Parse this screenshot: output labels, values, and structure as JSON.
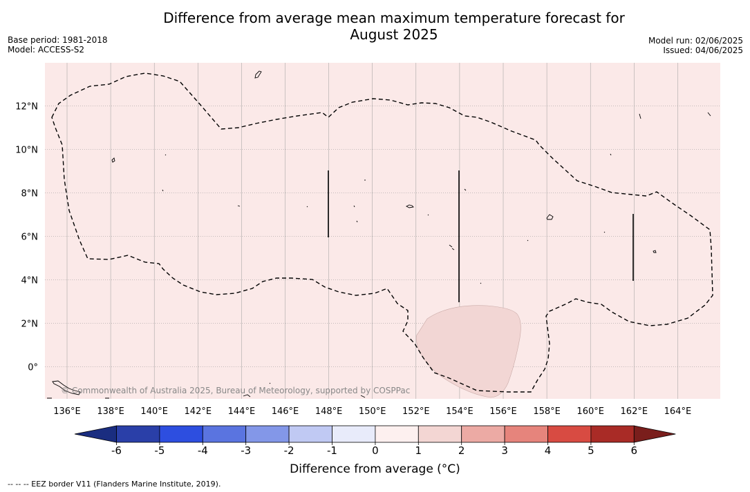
{
  "header": {
    "title_line1": "Difference from average mean maximum temperature forecast for",
    "title_line2": "August 2025",
    "base_period": "Base period: 1981-2018",
    "model": "Model: ACCESS-S2",
    "model_run": "Model run: 02/06/2025",
    "issued": "Issued: 04/06/2025"
  },
  "map": {
    "lon_labels": [
      "136°E",
      "138°E",
      "140°E",
      "142°E",
      "144°E",
      "146°E",
      "148°E",
      "150°E",
      "152°E",
      "154°E",
      "156°E",
      "158°E",
      "160°E",
      "162°E",
      "164°E"
    ],
    "lat_labels": [
      "12°N",
      "10°N",
      "8°N",
      "6°N",
      "4°N",
      "2°N",
      "0°"
    ],
    "background_color": "#fbe9e8",
    "anomaly_patch_color": "#f2d6d4",
    "eez_color": "#000000",
    "copyright": "© Commonwealth of Australia 2025, Bureau of Meteorology, supported by COSPPac"
  },
  "colorbar": {
    "ticks": [
      "-6",
      "-5",
      "-4",
      "-3",
      "-2",
      "-1",
      "0",
      "1",
      "2",
      "3",
      "4",
      "5",
      "6"
    ],
    "colors": [
      "#2a3fa8",
      "#2d4ee0",
      "#5a74e0",
      "#8397e8",
      "#c0c9f3",
      "#e8ebfa",
      "#fdf0ef",
      "#f3d6d3",
      "#ecaaa4",
      "#e6847c",
      "#d84b42",
      "#a92b26"
    ],
    "under_color": "#1a2d80",
    "over_color": "#7a1e1c",
    "label": "Difference from average (°C)"
  },
  "footnote": "--  --  -- EEZ border V11 (Flanders Marine Institute, 2019)."
}
